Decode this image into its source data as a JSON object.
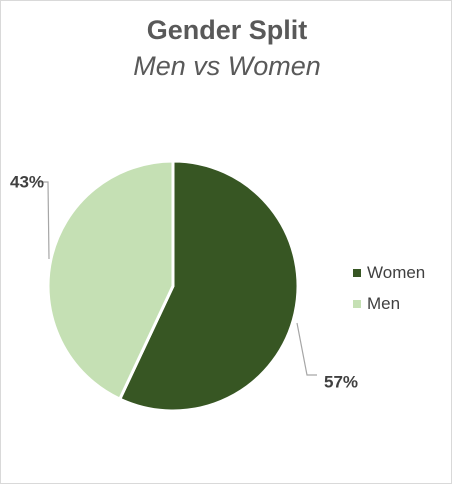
{
  "chart_data": {
    "type": "pie",
    "title": "Gender Split",
    "subtitle": "Men vs Women",
    "slices": [
      {
        "label": "Women",
        "value": 57,
        "display": "57%",
        "color": "#375623"
      },
      {
        "label": "Men",
        "value": 43,
        "display": "43%",
        "color": "#c5e0b4"
      }
    ],
    "legend_position": "right",
    "data_labels": "outside-with-leader-lines"
  }
}
